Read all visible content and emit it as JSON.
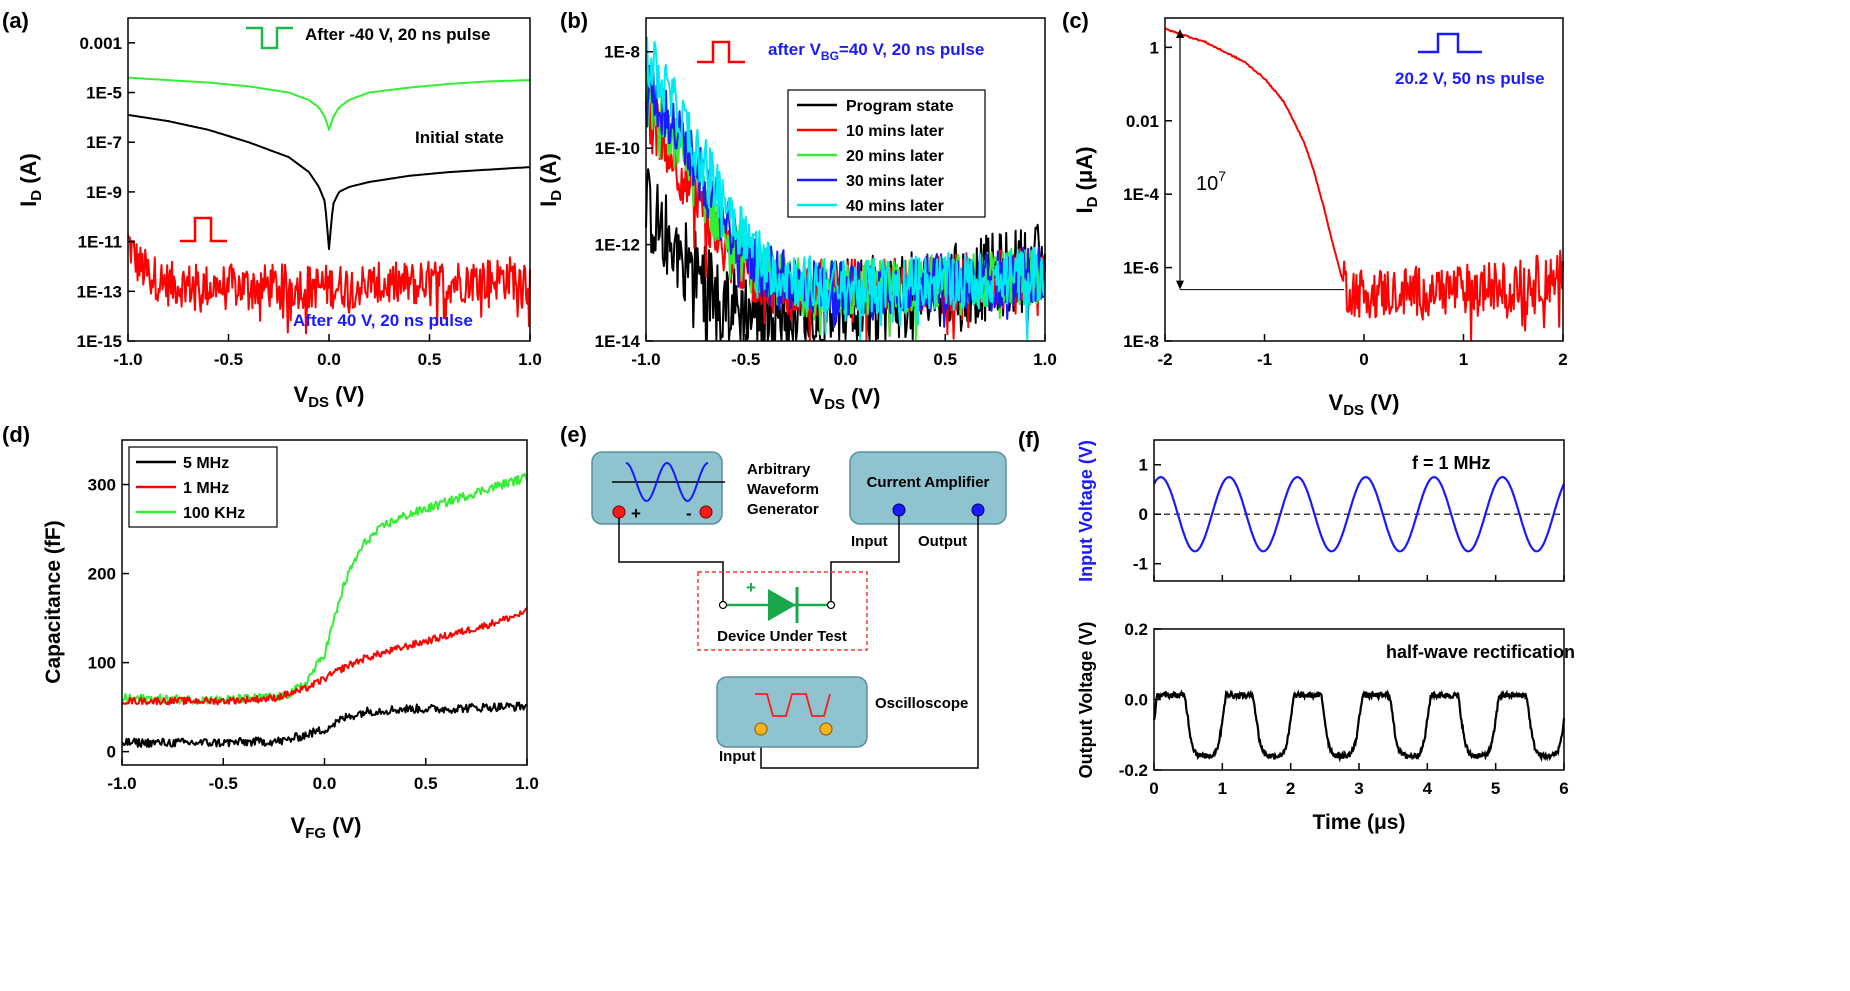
{
  "colors": {
    "black": "#000000",
    "red": "#ff0000",
    "green": "#33ee33",
    "blue": "#1a1aff",
    "cyan": "#00e8f0",
    "instrument_fill": "#8fc3cf",
    "instrument_stroke": "#5a8f9c",
    "dut_box": "#ff3333",
    "diode": "#1aa84a"
  },
  "chart_data": [
    {
      "id": "a",
      "panel_label": "(a)",
      "type": "line",
      "y_scale": "log",
      "xlabel": {
        "main": "V",
        "sub": "DS",
        "unit": " (V)"
      },
      "ylabel": {
        "main": "I",
        "sub": "D",
        "unit": " (A)"
      },
      "xlim": [
        -1.0,
        1.0
      ],
      "ylim_exp": [
        -15,
        -2
      ],
      "x_ticks": [
        -1.0,
        -0.5,
        0.0,
        0.5,
        1.0
      ],
      "x_tick_labels": [
        "-1.0",
        "-0.5",
        "0.0",
        "0.5",
        "1.0"
      ],
      "y_ticks_exp": [
        -3,
        -5,
        -7,
        -9,
        -11,
        -13,
        -15
      ],
      "y_tick_labels": [
        "0.001",
        "1E-5",
        "1E-7",
        "1E-9",
        "1E-11",
        "1E-13",
        "1E-15"
      ],
      "grid": false,
      "series": [
        {
          "color": "#33ee33",
          "label": "After -40 V, 20 ns pulse",
          "x": [
            -1.0,
            -0.8,
            -0.6,
            -0.4,
            -0.2,
            -0.1,
            -0.05,
            -0.02,
            0.0,
            0.02,
            0.05,
            0.1,
            0.2,
            0.4,
            0.6,
            0.8,
            1.0
          ],
          "y_exp": [
            -4.4,
            -4.5,
            -4.6,
            -4.75,
            -5.0,
            -5.3,
            -5.6,
            -6.0,
            -6.5,
            -6.0,
            -5.6,
            -5.3,
            -5.0,
            -4.8,
            -4.65,
            -4.55,
            -4.5
          ]
        },
        {
          "color": "#000000",
          "label": "Initial state",
          "x": [
            -1.0,
            -0.8,
            -0.6,
            -0.4,
            -0.2,
            -0.1,
            -0.05,
            -0.02,
            0.0,
            0.02,
            0.05,
            0.1,
            0.2,
            0.4,
            0.6,
            0.8,
            1.0
          ],
          "y_exp": [
            -5.9,
            -6.15,
            -6.5,
            -7.0,
            -7.6,
            -8.2,
            -8.8,
            -9.4,
            -11.3,
            -9.5,
            -9.0,
            -8.8,
            -8.6,
            -8.35,
            -8.2,
            -8.1,
            -8.0
          ]
        },
        {
          "color": "#ff0000",
          "label": "After 40 V, 20 ns pulse",
          "x": [
            -1.0,
            -0.95,
            -0.9,
            -0.8,
            -0.6,
            -0.4,
            -0.2,
            0.0,
            0.2,
            0.4,
            0.6,
            0.8,
            1.0
          ],
          "y_exp": [
            -11.0,
            -11.9,
            -12.3,
            -12.7,
            -12.8,
            -12.8,
            -12.8,
            -12.8,
            -12.75,
            -12.7,
            -12.6,
            -12.5,
            -12.4
          ],
          "noise": 0.9
        }
      ],
      "annotations": [
        {
          "text": "After -40 V, 20 ns pulse",
          "color": "#000000"
        },
        {
          "text": "Initial state",
          "color": "#000000"
        },
        {
          "text": "After 40 V, 20 ns pulse",
          "color": "#1a1aff"
        }
      ]
    },
    {
      "id": "b",
      "panel_label": "(b)",
      "type": "line",
      "y_scale": "log",
      "xlabel": {
        "main": "V",
        "sub": "DS",
        "unit": " (V)"
      },
      "ylabel": {
        "main": "I",
        "sub": "D",
        "unit": " (A)"
      },
      "xlim": [
        -1.0,
        1.0
      ],
      "ylim_exp": [
        -14,
        -7.3
      ],
      "x_ticks": [
        -1.0,
        -0.5,
        0.0,
        0.5,
        1.0
      ],
      "x_tick_labels": [
        "-1.0",
        "-0.5",
        "0.0",
        "0.5",
        "1.0"
      ],
      "y_ticks_exp": [
        -8,
        -10,
        -12,
        -14
      ],
      "y_tick_labels": [
        "1E-8",
        "1E-10",
        "1E-12",
        "1E-14"
      ],
      "grid": false,
      "title": {
        "pre": "after V",
        "sub": "BG",
        "post": "=40 V, 20 ns pulse"
      },
      "legend": {
        "position": "right",
        "entries": [
          "Program state",
          "10 mins later",
          "20 mins later",
          "30 mins later",
          "40 mins later"
        ]
      },
      "series": [
        {
          "name": "Program state",
          "color": "#000000",
          "x": [
            -1.0,
            -0.9,
            -0.8,
            -0.7,
            -0.6,
            -0.5,
            -0.4,
            -0.2,
            0.0,
            0.2,
            0.4,
            0.6,
            0.8,
            1.0
          ],
          "y_exp": [
            -11.2,
            -11.8,
            -12.3,
            -12.8,
            -13.2,
            -13.4,
            -13.4,
            -13.3,
            -13.2,
            -13.1,
            -13.0,
            -12.8,
            -12.6,
            -12.4
          ],
          "noise": 0.9
        },
        {
          "name": "10 mins later",
          "color": "#ff0000",
          "x": [
            -1.0,
            -0.9,
            -0.8,
            -0.7,
            -0.6,
            -0.5,
            -0.4,
            -0.2,
            0.0,
            0.2,
            0.4,
            0.6,
            0.8,
            1.0
          ],
          "y_exp": [
            -9.2,
            -9.9,
            -10.7,
            -11.5,
            -12.1,
            -12.5,
            -12.8,
            -12.9,
            -12.9,
            -12.85,
            -12.8,
            -12.75,
            -12.7,
            -12.6
          ],
          "noise": 0.6
        },
        {
          "name": "20 mins later",
          "color": "#33ee33",
          "x": [
            -1.0,
            -0.9,
            -0.8,
            -0.7,
            -0.6,
            -0.5,
            -0.4,
            -0.2,
            0.0,
            0.2,
            0.4,
            0.6,
            0.8,
            1.0
          ],
          "y_exp": [
            -8.9,
            -9.6,
            -10.3,
            -11.0,
            -11.8,
            -12.3,
            -12.7,
            -12.9,
            -12.9,
            -12.85,
            -12.8,
            -12.75,
            -12.7,
            -12.6
          ],
          "noise": 0.6
        },
        {
          "name": "30 mins later",
          "color": "#1a1aff",
          "x": [
            -1.0,
            -0.9,
            -0.8,
            -0.7,
            -0.6,
            -0.5,
            -0.4,
            -0.2,
            0.0,
            0.2,
            0.4,
            0.6,
            0.8,
            1.0
          ],
          "y_exp": [
            -8.6,
            -9.3,
            -10.0,
            -10.8,
            -11.5,
            -12.1,
            -12.6,
            -12.85,
            -12.9,
            -12.85,
            -12.8,
            -12.75,
            -12.7,
            -12.6
          ],
          "noise": 0.6
        },
        {
          "name": "40 mins later",
          "color": "#00e8f0",
          "x": [
            -1.0,
            -0.9,
            -0.8,
            -0.7,
            -0.6,
            -0.5,
            -0.4,
            -0.2,
            0.0,
            0.2,
            0.4,
            0.6,
            0.8,
            1.0
          ],
          "y_exp": [
            -8.1,
            -8.8,
            -9.6,
            -10.4,
            -11.1,
            -11.8,
            -12.4,
            -12.8,
            -12.9,
            -12.85,
            -12.8,
            -12.75,
            -12.7,
            -12.6
          ],
          "noise": 0.6
        }
      ]
    },
    {
      "id": "c",
      "panel_label": "(c)",
      "type": "line",
      "y_scale": "log",
      "xlabel": {
        "main": "V",
        "sub": "DS",
        "unit": " (V)"
      },
      "ylabel": {
        "main": "I",
        "sub": "D",
        "unit": " (μA)"
      },
      "xlim": [
        -2,
        2
      ],
      "ylim_exp": [
        -8,
        0.8
      ],
      "x_ticks": [
        -2,
        -1,
        0,
        1,
        2
      ],
      "x_tick_labels": [
        "-2",
        "-1",
        "0",
        "1",
        "2"
      ],
      "y_ticks_exp": [
        0,
        -2,
        -4,
        -6,
        -8
      ],
      "y_tick_labels": [
        "1",
        "0.01",
        "1E-4",
        "1E-6",
        "1E-8"
      ],
      "grid": false,
      "title": "20.2 V, 50 ns pulse",
      "ratio_label": {
        "base": "10",
        "exp": "7"
      },
      "ratio_top_exp": 0.5,
      "ratio_bottom_exp": -6.6,
      "series": [
        {
          "color": "#ff0000",
          "x": [
            -2.0,
            -1.6,
            -1.2,
            -1.0,
            -0.8,
            -0.6,
            -0.5,
            -0.4,
            -0.3,
            -0.22,
            -0.15,
            0.0,
            0.5,
            1.0,
            1.5,
            2.0
          ],
          "y_exp": [
            0.5,
            0.15,
            -0.4,
            -0.85,
            -1.5,
            -2.6,
            -3.4,
            -4.4,
            -5.5,
            -6.3,
            -6.6,
            -6.7,
            -6.65,
            -6.6,
            -6.5,
            -6.2
          ],
          "noise_from": -0.2,
          "noise": 0.7
        }
      ]
    },
    {
      "id": "d",
      "panel_label": "(d)",
      "type": "line",
      "y_scale": "linear",
      "xlabel": {
        "main": "V",
        "sub": "FG",
        "unit": " (V)"
      },
      "ylabel": {
        "main": "Capacitance (fF)"
      },
      "xlim": [
        -1.0,
        1.0
      ],
      "ylim": [
        -15,
        350
      ],
      "x_ticks": [
        -1.0,
        -0.5,
        0.0,
        0.5,
        1.0
      ],
      "x_tick_labels": [
        "-1.0",
        "-0.5",
        "0.0",
        "0.5",
        "1.0"
      ],
      "y_ticks": [
        0,
        100,
        200,
        300
      ],
      "y_tick_labels": [
        "0",
        "100",
        "200",
        "300"
      ],
      "grid": false,
      "legend": {
        "position": "top-left",
        "entries": [
          "5 MHz",
          "1 MHz",
          "100 KHz"
        ]
      },
      "series": [
        {
          "name": "5 MHz",
          "color": "#000000",
          "x": [
            -1.0,
            -0.5,
            -0.2,
            0.0,
            0.1,
            0.2,
            0.4,
            0.6,
            0.8,
            1.0
          ],
          "y": [
            10,
            10,
            12,
            25,
            38,
            45,
            48,
            48,
            50,
            51
          ],
          "noise": 5
        },
        {
          "name": "1 MHz",
          "color": "#ff0000",
          "x": [
            -1.0,
            -0.5,
            -0.25,
            -0.1,
            0.0,
            0.1,
            0.2,
            0.4,
            0.6,
            0.8,
            1.0
          ],
          "y": [
            57,
            57,
            60,
            70,
            82,
            95,
            105,
            118,
            130,
            142,
            157
          ],
          "noise": 4
        },
        {
          "name": "100 KHz",
          "color": "#33ee33",
          "x": [
            -1.0,
            -0.5,
            -0.2,
            -0.1,
            0.0,
            0.05,
            0.1,
            0.15,
            0.2,
            0.3,
            0.4,
            0.6,
            0.8,
            1.0
          ],
          "y": [
            60,
            58,
            62,
            75,
            110,
            150,
            190,
            215,
            235,
            255,
            265,
            280,
            295,
            308
          ],
          "noise": 5
        }
      ]
    },
    {
      "id": "f_top",
      "panel_label": "(f)",
      "type": "line",
      "y_scale": "linear",
      "ylabel": {
        "main": "Input Voltage (V)"
      },
      "xlim": [
        0,
        6
      ],
      "ylim": [
        -1.35,
        1.5
      ],
      "y_ticks": [
        1,
        0,
        -1
      ],
      "y_tick_labels": [
        "1",
        "0",
        "-1"
      ],
      "grid": false,
      "title": "f = 1 MHz",
      "series": [
        {
          "color": "#1a1aff",
          "function": "sine",
          "amplitude": 0.75,
          "frequency_mhz": 1.0,
          "phase_us": 0.0
        }
      ],
      "reference_line": {
        "y": 0,
        "style": "dashed"
      }
    },
    {
      "id": "f_bottom",
      "type": "line",
      "y_scale": "linear",
      "xlabel": {
        "main": "Time (μs)"
      },
      "ylabel": {
        "main": "Output Voltage (V)"
      },
      "xlim": [
        0,
        6
      ],
      "ylim": [
        -0.2,
        0.2
      ],
      "x_ticks": [
        0,
        1,
        2,
        3,
        4,
        5,
        6
      ],
      "x_tick_labels": [
        "0",
        "1",
        "2",
        "3",
        "4",
        "5",
        "6"
      ],
      "y_ticks": [
        0.2,
        0.0,
        -0.2
      ],
      "y_tick_labels": [
        "0.2",
        "0.0",
        "-0.2"
      ],
      "grid": false,
      "title": "half-wave rectification",
      "series": [
        {
          "color": "#000000",
          "function": "half-wave",
          "low": -0.16,
          "high": 0.012,
          "frequency_mhz": 1.0,
          "dip_center_us": 0.75,
          "noise": 0.008
        }
      ]
    }
  ],
  "panel_e": {
    "panel_label": "(e)",
    "awg_label_lines": [
      "Arbitrary",
      "Waveform",
      "Generator"
    ],
    "awg_plus": "+",
    "awg_minus": "-",
    "amplifier_label": "Current Amplifier",
    "amp_input_label": "Input",
    "amp_output_label": "Output",
    "dut_plus": "+",
    "dut_label": "Device Under Test",
    "scope_label": "Oscilloscope",
    "scope_input_label": "Input"
  }
}
